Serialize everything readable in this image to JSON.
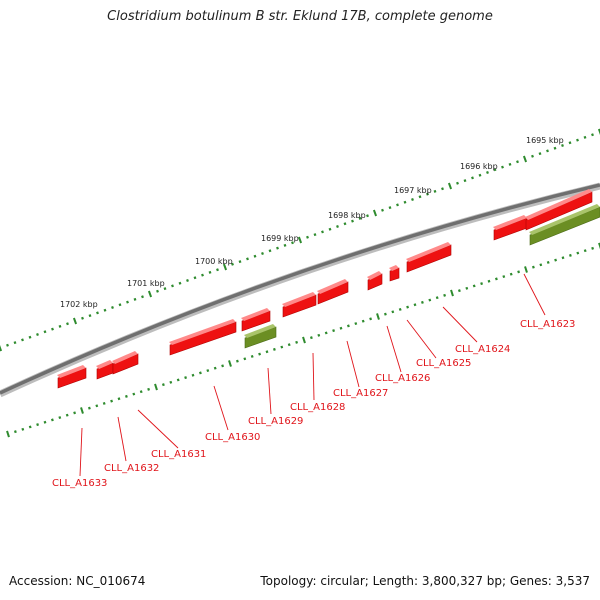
{
  "title": "Clostridium botulinum B str. Eklund 17B, complete genome",
  "accession": "Accession: NC_010674",
  "summary": "Topology: circular; Length: 3,800,327 bp; Genes: 3,537",
  "colors": {
    "backbone": "#7a7a7a",
    "tick": "#2e8b2e",
    "gene_red": "#ee1111",
    "gene_green": "#6b8e23",
    "label": "#e0141a"
  },
  "kbp_labels": [
    "1702 kbp",
    "1701 kbp",
    "1700 kbp",
    "1699 kbp",
    "1698 kbp",
    "1697 kbp",
    "1696 kbp",
    "1695 kbp"
  ],
  "gene_labels": [
    "CLL_A1633",
    "CLL_A1632",
    "CLL_A1631",
    "CLL_A1630",
    "CLL_A1629",
    "CLL_A1628",
    "CLL_A1627",
    "CLL_A1626",
    "CLL_A1625",
    "CLL_A1624",
    "CLL_A1623"
  ]
}
